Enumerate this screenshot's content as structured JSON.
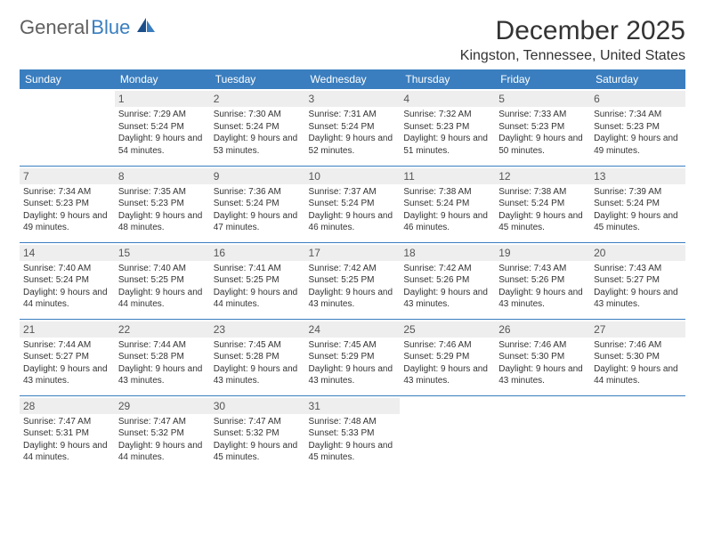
{
  "logo": {
    "text1": "General",
    "text2": "Blue"
  },
  "title": "December 2025",
  "location": "Kingston, Tennessee, United States",
  "colors": {
    "header_bg": "#3a7ebf",
    "header_text": "#ffffff",
    "daynum_bg": "#eeeeee",
    "text": "#333333",
    "row_border": "#3a7ebf"
  },
  "day_headers": [
    "Sunday",
    "Monday",
    "Tuesday",
    "Wednesday",
    "Thursday",
    "Friday",
    "Saturday"
  ],
  "weeks": [
    [
      {
        "num": "",
        "lines": ""
      },
      {
        "num": "1",
        "lines": "Sunrise: 7:29 AM\nSunset: 5:24 PM\nDaylight: 9 hours and 54 minutes."
      },
      {
        "num": "2",
        "lines": "Sunrise: 7:30 AM\nSunset: 5:24 PM\nDaylight: 9 hours and 53 minutes."
      },
      {
        "num": "3",
        "lines": "Sunrise: 7:31 AM\nSunset: 5:24 PM\nDaylight: 9 hours and 52 minutes."
      },
      {
        "num": "4",
        "lines": "Sunrise: 7:32 AM\nSunset: 5:23 PM\nDaylight: 9 hours and 51 minutes."
      },
      {
        "num": "5",
        "lines": "Sunrise: 7:33 AM\nSunset: 5:23 PM\nDaylight: 9 hours and 50 minutes."
      },
      {
        "num": "6",
        "lines": "Sunrise: 7:34 AM\nSunset: 5:23 PM\nDaylight: 9 hours and 49 minutes."
      }
    ],
    [
      {
        "num": "7",
        "lines": "Sunrise: 7:34 AM\nSunset: 5:23 PM\nDaylight: 9 hours and 49 minutes."
      },
      {
        "num": "8",
        "lines": "Sunrise: 7:35 AM\nSunset: 5:23 PM\nDaylight: 9 hours and 48 minutes."
      },
      {
        "num": "9",
        "lines": "Sunrise: 7:36 AM\nSunset: 5:24 PM\nDaylight: 9 hours and 47 minutes."
      },
      {
        "num": "10",
        "lines": "Sunrise: 7:37 AM\nSunset: 5:24 PM\nDaylight: 9 hours and 46 minutes."
      },
      {
        "num": "11",
        "lines": "Sunrise: 7:38 AM\nSunset: 5:24 PM\nDaylight: 9 hours and 46 minutes."
      },
      {
        "num": "12",
        "lines": "Sunrise: 7:38 AM\nSunset: 5:24 PM\nDaylight: 9 hours and 45 minutes."
      },
      {
        "num": "13",
        "lines": "Sunrise: 7:39 AM\nSunset: 5:24 PM\nDaylight: 9 hours and 45 minutes."
      }
    ],
    [
      {
        "num": "14",
        "lines": "Sunrise: 7:40 AM\nSunset: 5:24 PM\nDaylight: 9 hours and 44 minutes."
      },
      {
        "num": "15",
        "lines": "Sunrise: 7:40 AM\nSunset: 5:25 PM\nDaylight: 9 hours and 44 minutes."
      },
      {
        "num": "16",
        "lines": "Sunrise: 7:41 AM\nSunset: 5:25 PM\nDaylight: 9 hours and 44 minutes."
      },
      {
        "num": "17",
        "lines": "Sunrise: 7:42 AM\nSunset: 5:25 PM\nDaylight: 9 hours and 43 minutes."
      },
      {
        "num": "18",
        "lines": "Sunrise: 7:42 AM\nSunset: 5:26 PM\nDaylight: 9 hours and 43 minutes."
      },
      {
        "num": "19",
        "lines": "Sunrise: 7:43 AM\nSunset: 5:26 PM\nDaylight: 9 hours and 43 minutes."
      },
      {
        "num": "20",
        "lines": "Sunrise: 7:43 AM\nSunset: 5:27 PM\nDaylight: 9 hours and 43 minutes."
      }
    ],
    [
      {
        "num": "21",
        "lines": "Sunrise: 7:44 AM\nSunset: 5:27 PM\nDaylight: 9 hours and 43 minutes."
      },
      {
        "num": "22",
        "lines": "Sunrise: 7:44 AM\nSunset: 5:28 PM\nDaylight: 9 hours and 43 minutes."
      },
      {
        "num": "23",
        "lines": "Sunrise: 7:45 AM\nSunset: 5:28 PM\nDaylight: 9 hours and 43 minutes."
      },
      {
        "num": "24",
        "lines": "Sunrise: 7:45 AM\nSunset: 5:29 PM\nDaylight: 9 hours and 43 minutes."
      },
      {
        "num": "25",
        "lines": "Sunrise: 7:46 AM\nSunset: 5:29 PM\nDaylight: 9 hours and 43 minutes."
      },
      {
        "num": "26",
        "lines": "Sunrise: 7:46 AM\nSunset: 5:30 PM\nDaylight: 9 hours and 43 minutes."
      },
      {
        "num": "27",
        "lines": "Sunrise: 7:46 AM\nSunset: 5:30 PM\nDaylight: 9 hours and 44 minutes."
      }
    ],
    [
      {
        "num": "28",
        "lines": "Sunrise: 7:47 AM\nSunset: 5:31 PM\nDaylight: 9 hours and 44 minutes."
      },
      {
        "num": "29",
        "lines": "Sunrise: 7:47 AM\nSunset: 5:32 PM\nDaylight: 9 hours and 44 minutes."
      },
      {
        "num": "30",
        "lines": "Sunrise: 7:47 AM\nSunset: 5:32 PM\nDaylight: 9 hours and 45 minutes."
      },
      {
        "num": "31",
        "lines": "Sunrise: 7:48 AM\nSunset: 5:33 PM\nDaylight: 9 hours and 45 minutes."
      },
      {
        "num": "",
        "lines": ""
      },
      {
        "num": "",
        "lines": ""
      },
      {
        "num": "",
        "lines": ""
      }
    ]
  ]
}
